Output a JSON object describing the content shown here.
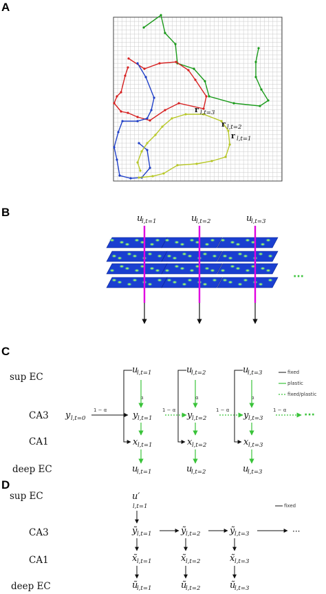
{
  "panels": {
    "a": {
      "label": "A",
      "r_labels": [
        {
          "var": "r",
          "sub": "l,t=3"
        },
        {
          "var": "r",
          "sub": "l,t=2"
        },
        {
          "var": "r",
          "sub": "l,t=1"
        }
      ],
      "trajectory_colors": [
        "#1a9a1a",
        "#d62020",
        "#2040c8",
        "#b8c828"
      ]
    },
    "b": {
      "label": "B",
      "inputs": [
        {
          "var": "u",
          "sub": "l,t=1"
        },
        {
          "var": "u",
          "sub": "l,t=2"
        },
        {
          "var": "u",
          "sub": "l,t=3"
        }
      ],
      "ellipsis": "···",
      "arrow_color": "#e000e0"
    },
    "c": {
      "label": "C",
      "rows": [
        "sup EC",
        "CA3",
        "CA1",
        "deep EC"
      ],
      "legend": [
        "fixed",
        "plastic",
        "fixed/plastic"
      ],
      "alpha": "α",
      "one_minus_alpha": "1 − α",
      "y0": {
        "var": "y",
        "sub": "l,t=0"
      },
      "columns": [
        {
          "u": {
            "var": "u",
            "sub": "l,t=1"
          },
          "y": {
            "var": "y",
            "sub": "l,t=1"
          },
          "x": {
            "var": "x",
            "sub": "l,t=1"
          },
          "uo": {
            "var": "u",
            "sub": "l,t=1"
          }
        },
        {
          "u": {
            "var": "u",
            "sub": "l,t=2"
          },
          "y": {
            "var": "y",
            "sub": "l,t=2"
          },
          "x": {
            "var": "x",
            "sub": "l,t=2"
          },
          "uo": {
            "var": "u",
            "sub": "l,t=2"
          }
        },
        {
          "u": {
            "var": "u",
            "sub": "l,t=3"
          },
          "y": {
            "var": "y",
            "sub": "l,t=3"
          },
          "x": {
            "var": "x",
            "sub": "l,t=3"
          },
          "uo": {
            "var": "u",
            "sub": "l,t=3"
          }
        }
      ],
      "ellipsis": "···",
      "colors": {
        "fixed": "#111111",
        "plastic": "#39c339"
      }
    },
    "d": {
      "label": "D",
      "rows": [
        "sup EC",
        "CA3",
        "CA1",
        "deep EC"
      ],
      "legend": [
        "fixed"
      ],
      "u_top": {
        "var": "u′",
        "sub": "l,t=1"
      },
      "columns": [
        {
          "y": {
            "var": "ỹ",
            "sub": "l,t=1"
          },
          "x": {
            "var": "x̃",
            "sub": "l,t=1"
          },
          "u": {
            "var": "ũ",
            "sub": "l,t=1"
          }
        },
        {
          "y": {
            "var": "ỹ",
            "sub": "l,t=2"
          },
          "x": {
            "var": "x̃",
            "sub": "l,t=2"
          },
          "u": {
            "var": "ũ",
            "sub": "l,t=2"
          }
        },
        {
          "y": {
            "var": "ỹ",
            "sub": "l,t=3"
          },
          "x": {
            "var": "x̃",
            "sub": "l,t=3"
          },
          "u": {
            "var": "ũ",
            "sub": "l,t=3"
          }
        }
      ],
      "ellipsis": "···"
    }
  }
}
